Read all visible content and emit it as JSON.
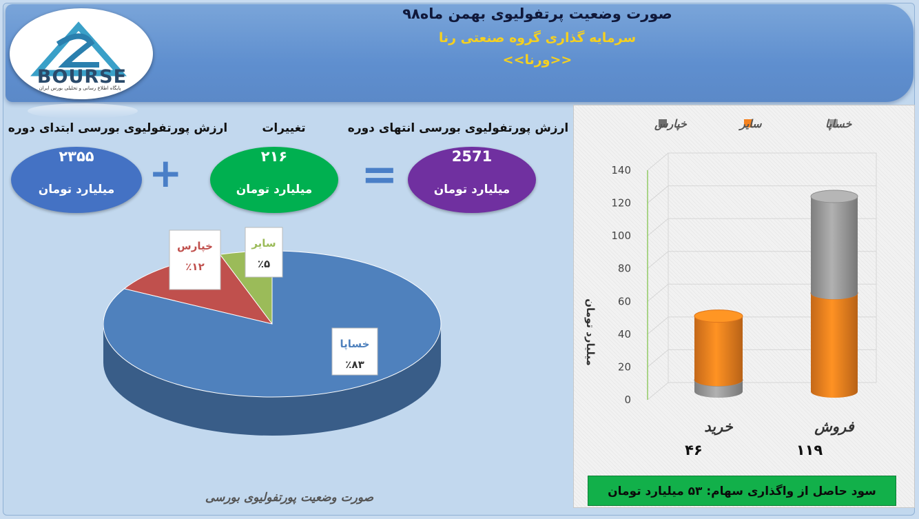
{
  "header": {
    "title": "صورت وضعیت پرتفولیوی بهمن ماه۹۸",
    "subtitle": "سرمایه گذاری گروه صنعتی رنا",
    "symbol": "<<ورنا>>",
    "logo_word": "BOURSE",
    "logo_sub": "پایگاه اطلاع رسانی و تحلیلی بورس ایران"
  },
  "summary": {
    "begin_label": "ارزش پورتفولیوی بورسی ابتدای دوره",
    "change_label": "تغییرات",
    "end_label": "ارزش پورتفولیوی بورسی انتهای دوره",
    "begin_value": "۲۳۵۵",
    "change_value": "۲۱۶",
    "end_value": "2571",
    "unit": "میلیارد تومان",
    "plus_sign": "+",
    "equals_sign": "="
  },
  "colors": {
    "begin_oval": "#4472c4",
    "change_oval": "#00b050",
    "end_oval": "#7030a0",
    "pie_khasapa": "#4f81bd",
    "pie_khpars": "#c0504d",
    "pie_sayer": "#9bbb59",
    "bar_orange": "#f5821f",
    "bar_gray": "#9e9e9e",
    "profit_green": "#12b04a"
  },
  "pie_caption": "صورت وضعیت پورتفولیوی بورسی",
  "profit_text": "سود حاصل از واگذاری سهام: ۵۳ میلیارد تومان",
  "chart_data": [
    {
      "type": "pie",
      "title": "",
      "slices": [
        {
          "label": "خساپا",
          "value": 83,
          "value_label": "٪۸۳"
        },
        {
          "label": "خپارس",
          "value": 12,
          "value_label": "٪۱۲"
        },
        {
          "label": "سایر",
          "value": 5,
          "value_label": "٪۵"
        }
      ]
    },
    {
      "type": "bar",
      "stacked": true,
      "three_d": true,
      "categories": [
        "خرید",
        "فروش"
      ],
      "category_totals": [
        "۴۶",
        "۱۱۹"
      ],
      "ylabel": "میلیارد تومان",
      "ylim": [
        0,
        140
      ],
      "yticks": [
        0,
        20,
        40,
        60,
        80,
        100,
        120,
        140
      ],
      "legend": [
        "خساپا",
        "سایر",
        "خپارس"
      ],
      "legend_position": "top",
      "series": [
        {
          "name": "خپارس",
          "values": [
            7,
            0
          ]
        },
        {
          "name": "سایر",
          "values": [
            39,
            60
          ]
        },
        {
          "name": "خساپا",
          "values": [
            0,
            59
          ]
        }
      ]
    }
  ]
}
